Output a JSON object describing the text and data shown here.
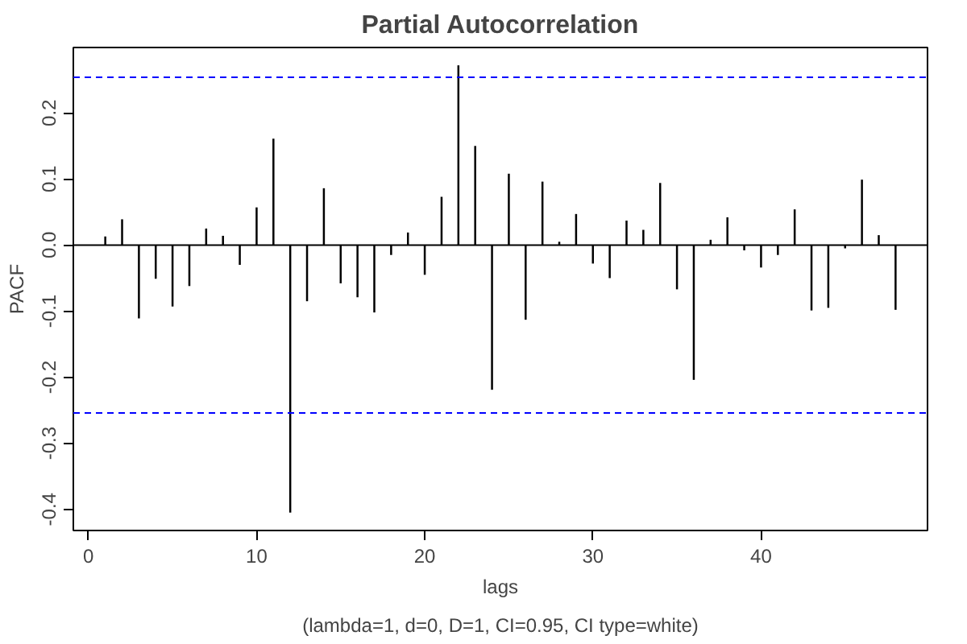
{
  "chart_data": {
    "type": "bar",
    "title": "Partial Autocorrelation",
    "subtitle": "(lambda=1, d=0, D=1, CI=0.95, CI type=white)",
    "xlabel": "lags",
    "ylabel": "PACF",
    "x": [
      1,
      2,
      3,
      4,
      5,
      6,
      7,
      8,
      9,
      10,
      11,
      12,
      13,
      14,
      15,
      16,
      17,
      18,
      19,
      20,
      21,
      22,
      23,
      24,
      25,
      26,
      27,
      28,
      29,
      30,
      31,
      32,
      33,
      34,
      35,
      36,
      37,
      38,
      39,
      40,
      41,
      42,
      43,
      44,
      45,
      46,
      47,
      48
    ],
    "values": [
      0.013,
      0.039,
      -0.111,
      -0.051,
      -0.093,
      -0.062,
      0.025,
      0.014,
      -0.03,
      0.057,
      0.161,
      -0.405,
      -0.085,
      0.086,
      -0.058,
      -0.079,
      -0.102,
      -0.015,
      0.019,
      -0.045,
      0.073,
      0.272,
      0.15,
      -0.219,
      0.108,
      -0.113,
      0.096,
      0.005,
      0.047,
      -0.028,
      -0.05,
      0.037,
      0.023,
      0.094,
      -0.067,
      -0.204,
      0.008,
      0.042,
      -0.008,
      -0.034,
      -0.015,
      0.054,
      -0.099,
      -0.095,
      -0.005,
      0.099,
      0.015,
      -0.098
    ],
    "color": "#000000",
    "xlim": [
      -0.9,
      49.9
    ],
    "ylim": [
      -0.432,
      0.299
    ],
    "xticks": [
      0,
      10,
      20,
      30,
      40
    ],
    "yticks": [
      -0.4,
      -0.3,
      -0.2,
      -0.1,
      {
        "value": 0,
        "label": "0.0"
      },
      0.1,
      0.2
    ],
    "ref_lines": [
      {
        "axis": "y",
        "value": 0,
        "color": "#000000",
        "line_style": "solid"
      },
      {
        "axis": "y",
        "value": 0.254,
        "color": "#0000ff",
        "line_style": "dashed"
      },
      {
        "axis": "y",
        "value": -0.254,
        "color": "#0000ff",
        "line_style": "dashed"
      }
    ],
    "grid": false
  }
}
